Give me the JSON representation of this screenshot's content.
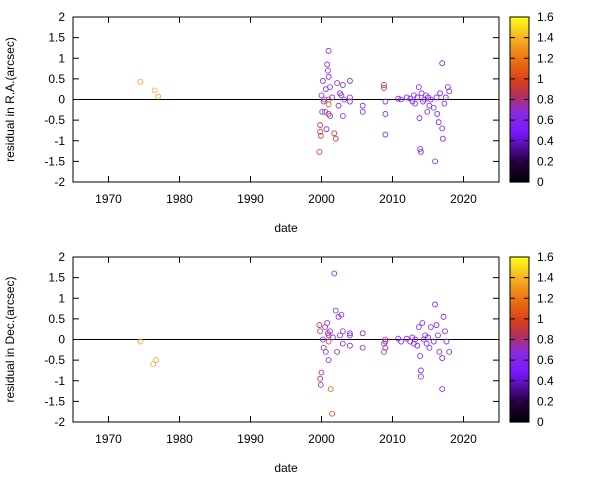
{
  "chart_data": [
    {
      "type": "scatter",
      "title": "",
      "xlabel": "date",
      "ylabel": "residual in R.A.(arcsec)",
      "xlim": [
        1965,
        2025
      ],
      "ylim": [
        -2,
        2
      ],
      "xticks": [
        1970,
        1980,
        1990,
        2000,
        2010,
        2020
      ],
      "yticks": [
        -2,
        -1.5,
        -1,
        -0.5,
        0,
        0.5,
        1,
        1.5,
        2
      ],
      "reference_line_y": 0,
      "marker": "open-circle",
      "colorbar": {
        "range": [
          0,
          1.6
        ],
        "ticks": [
          0,
          0.2,
          0.4,
          0.6,
          0.8,
          1,
          1.2,
          1.4,
          1.6
        ],
        "palette": "black-purple-red-orange-yellow"
      },
      "grid": false,
      "points": [
        {
          "x": 1974.5,
          "y": 0.43,
          "c": 1.35
        },
        {
          "x": 1976.5,
          "y": 0.22,
          "c": 1.4
        },
        {
          "x": 1977.0,
          "y": 0.07,
          "c": 1.35
        },
        {
          "x": 1999.7,
          "y": -1.27,
          "c": 0.95
        },
        {
          "x": 1999.8,
          "y": -0.78,
          "c": 0.95
        },
        {
          "x": 1999.8,
          "y": -0.62,
          "c": 0.9
        },
        {
          "x": 1999.9,
          "y": -0.88,
          "c": 0.9
        },
        {
          "x": 2000.0,
          "y": 0.1,
          "c": 0.65
        },
        {
          "x": 2000.1,
          "y": -0.3,
          "c": 0.65
        },
        {
          "x": 2000.2,
          "y": 0.45,
          "c": 0.6
        },
        {
          "x": 2000.3,
          "y": -0.05,
          "c": 0.7
        },
        {
          "x": 2000.4,
          "y": 0.0,
          "c": 0.65
        },
        {
          "x": 2000.5,
          "y": -0.3,
          "c": 0.65
        },
        {
          "x": 2000.6,
          "y": 0.25,
          "c": 0.6
        },
        {
          "x": 2000.7,
          "y": -0.72,
          "c": 0.6
        },
        {
          "x": 2000.8,
          "y": 0.85,
          "c": 0.6
        },
        {
          "x": 2000.9,
          "y": 0.7,
          "c": 0.65
        },
        {
          "x": 2001.0,
          "y": 1.18,
          "c": 0.6
        },
        {
          "x": 2001.0,
          "y": 0.55,
          "c": 0.6
        },
        {
          "x": 2001.0,
          "y": 0.0,
          "c": 1.0
        },
        {
          "x": 2001.0,
          "y": -0.12,
          "c": 1.1
        },
        {
          "x": 2001.0,
          "y": -0.35,
          "c": 0.9
        },
        {
          "x": 2001.2,
          "y": 0.3,
          "c": 0.65
        },
        {
          "x": 2001.2,
          "y": -0.4,
          "c": 0.65
        },
        {
          "x": 2001.5,
          "y": 0.05,
          "c": 0.6
        },
        {
          "x": 2001.8,
          "y": -0.82,
          "c": 0.9
        },
        {
          "x": 2002.0,
          "y": -0.95,
          "c": 0.9
        },
        {
          "x": 2002.2,
          "y": 0.4,
          "c": 0.6
        },
        {
          "x": 2002.4,
          "y": -0.15,
          "c": 0.6
        },
        {
          "x": 2002.6,
          "y": 0.15,
          "c": 0.6
        },
        {
          "x": 2002.8,
          "y": 0.1,
          "c": 0.6
        },
        {
          "x": 2003.0,
          "y": 0.35,
          "c": 0.65
        },
        {
          "x": 2003.0,
          "y": -0.4,
          "c": 0.6
        },
        {
          "x": 2003.2,
          "y": 0.0,
          "c": 0.6
        },
        {
          "x": 2004.0,
          "y": 0.05,
          "c": 0.6
        },
        {
          "x": 2004.0,
          "y": 0.45,
          "c": 0.6
        },
        {
          "x": 2004.0,
          "y": -0.05,
          "c": 0.6
        },
        {
          "x": 2005.8,
          "y": -0.15,
          "c": 0.6
        },
        {
          "x": 2005.8,
          "y": -0.3,
          "c": 0.6
        },
        {
          "x": 2008.8,
          "y": 0.35,
          "c": 0.9
        },
        {
          "x": 2008.8,
          "y": 0.28,
          "c": 0.9
        },
        {
          "x": 2009.0,
          "y": -0.05,
          "c": 0.6
        },
        {
          "x": 2009.0,
          "y": -0.35,
          "c": 0.6
        },
        {
          "x": 2009.0,
          "y": -0.85,
          "c": 0.6
        },
        {
          "x": 2010.8,
          "y": 0.02,
          "c": 0.55
        },
        {
          "x": 2011.2,
          "y": 0.0,
          "c": 0.55
        },
        {
          "x": 2012.0,
          "y": 0.05,
          "c": 0.55
        },
        {
          "x": 2012.5,
          "y": 0.02,
          "c": 0.55
        },
        {
          "x": 2012.8,
          "y": -0.05,
          "c": 0.55
        },
        {
          "x": 2013.0,
          "y": 0.1,
          "c": 0.55
        },
        {
          "x": 2013.2,
          "y": -0.1,
          "c": 0.55
        },
        {
          "x": 2013.5,
          "y": 0.05,
          "c": 0.55
        },
        {
          "x": 2013.7,
          "y": 0.3,
          "c": 0.55
        },
        {
          "x": 2013.8,
          "y": -0.45,
          "c": 0.55
        },
        {
          "x": 2013.9,
          "y": -1.2,
          "c": 0.55
        },
        {
          "x": 2014.0,
          "y": -1.27,
          "c": 0.55
        },
        {
          "x": 2014.1,
          "y": 0.15,
          "c": 0.55
        },
        {
          "x": 2014.3,
          "y": -0.05,
          "c": 0.55
        },
        {
          "x": 2014.5,
          "y": 0.0,
          "c": 0.55
        },
        {
          "x": 2014.7,
          "y": 0.1,
          "c": 0.55
        },
        {
          "x": 2014.9,
          "y": -0.3,
          "c": 0.55
        },
        {
          "x": 2015.0,
          "y": 0.05,
          "c": 0.55
        },
        {
          "x": 2015.2,
          "y": -0.15,
          "c": 0.55
        },
        {
          "x": 2015.4,
          "y": 0.0,
          "c": 0.55
        },
        {
          "x": 2015.8,
          "y": -0.2,
          "c": 0.55
        },
        {
          "x": 2016.0,
          "y": -1.5,
          "c": 0.55
        },
        {
          "x": 2016.2,
          "y": 0.05,
          "c": 0.55
        },
        {
          "x": 2016.3,
          "y": -0.35,
          "c": 0.55
        },
        {
          "x": 2016.5,
          "y": -0.55,
          "c": 0.55
        },
        {
          "x": 2016.7,
          "y": 0.15,
          "c": 0.55
        },
        {
          "x": 2017.0,
          "y": 0.88,
          "c": 0.55
        },
        {
          "x": 2017.0,
          "y": -0.7,
          "c": 0.55
        },
        {
          "x": 2017.1,
          "y": -0.95,
          "c": 0.55
        },
        {
          "x": 2017.3,
          "y": -0.1,
          "c": 0.55
        },
        {
          "x": 2017.5,
          "y": 0.05,
          "c": 0.55
        },
        {
          "x": 2017.8,
          "y": 0.3,
          "c": 0.55
        },
        {
          "x": 2018.0,
          "y": 0.2,
          "c": 0.55
        }
      ]
    },
    {
      "type": "scatter",
      "title": "",
      "xlabel": "date",
      "ylabel": "residual in Dec.(arcsec)",
      "xlim": [
        1965,
        2025
      ],
      "ylim": [
        -2,
        2
      ],
      "xticks": [
        1970,
        1980,
        1990,
        2000,
        2010,
        2020
      ],
      "yticks": [
        -2,
        -1.5,
        -1,
        -0.5,
        0,
        0.5,
        1,
        1.5,
        2
      ],
      "reference_line_y": 0,
      "marker": "open-circle",
      "colorbar": {
        "range": [
          0,
          1.6
        ],
        "ticks": [
          0,
          0.2,
          0.4,
          0.6,
          0.8,
          1,
          1.2,
          1.4,
          1.6
        ],
        "palette": "black-purple-red-orange-yellow"
      },
      "grid": false,
      "points": [
        {
          "x": 1974.5,
          "y": -0.05,
          "c": 1.35
        },
        {
          "x": 1976.3,
          "y": -0.6,
          "c": 1.35
        },
        {
          "x": 1976.7,
          "y": -0.5,
          "c": 1.35
        },
        {
          "x": 1999.7,
          "y": 0.35,
          "c": 0.9
        },
        {
          "x": 1999.8,
          "y": 0.2,
          "c": 0.9
        },
        {
          "x": 1999.8,
          "y": -0.95,
          "c": 0.95
        },
        {
          "x": 1999.9,
          "y": -1.1,
          "c": 0.6
        },
        {
          "x": 2000.0,
          "y": -0.8,
          "c": 0.6
        },
        {
          "x": 2000.2,
          "y": 0.0,
          "c": 0.65
        },
        {
          "x": 2000.3,
          "y": -0.2,
          "c": 0.65
        },
        {
          "x": 2000.5,
          "y": 0.3,
          "c": 0.65
        },
        {
          "x": 2000.6,
          "y": -0.3,
          "c": 0.65
        },
        {
          "x": 2000.8,
          "y": 0.4,
          "c": 0.65
        },
        {
          "x": 2000.9,
          "y": 0.15,
          "c": 0.9
        },
        {
          "x": 2001.0,
          "y": -0.05,
          "c": 1.0
        },
        {
          "x": 2001.0,
          "y": 0.1,
          "c": 0.6
        },
        {
          "x": 2001.0,
          "y": -0.5,
          "c": 0.6
        },
        {
          "x": 2001.2,
          "y": 0.2,
          "c": 0.6
        },
        {
          "x": 2001.3,
          "y": -1.2,
          "c": 1.1
        },
        {
          "x": 2001.5,
          "y": -1.8,
          "c": 1.0
        },
        {
          "x": 2001.6,
          "y": 0.05,
          "c": 0.6
        },
        {
          "x": 2001.8,
          "y": 1.6,
          "c": 0.6
        },
        {
          "x": 2002.0,
          "y": 0.7,
          "c": 0.6
        },
        {
          "x": 2002.2,
          "y": -0.3,
          "c": 0.6
        },
        {
          "x": 2002.4,
          "y": 0.55,
          "c": 0.6
        },
        {
          "x": 2002.6,
          "y": 0.1,
          "c": 0.6
        },
        {
          "x": 2002.8,
          "y": 0.6,
          "c": 0.6
        },
        {
          "x": 2003.0,
          "y": -0.1,
          "c": 0.6
        },
        {
          "x": 2003.0,
          "y": 0.2,
          "c": 0.6
        },
        {
          "x": 2004.0,
          "y": 0.15,
          "c": 0.6
        },
        {
          "x": 2004.0,
          "y": -0.15,
          "c": 0.6
        },
        {
          "x": 2004.0,
          "y": 0.1,
          "c": 0.6
        },
        {
          "x": 2005.8,
          "y": 0.15,
          "c": 0.6
        },
        {
          "x": 2005.8,
          "y": -0.2,
          "c": 0.6
        },
        {
          "x": 2008.8,
          "y": -0.1,
          "c": 0.9
        },
        {
          "x": 2008.8,
          "y": -0.3,
          "c": 0.9
        },
        {
          "x": 2009.0,
          "y": 0.0,
          "c": 0.9
        },
        {
          "x": 2009.0,
          "y": -0.05,
          "c": 0.6
        },
        {
          "x": 2009.0,
          "y": -0.2,
          "c": 0.6
        },
        {
          "x": 2010.8,
          "y": 0.02,
          "c": 0.55
        },
        {
          "x": 2011.2,
          "y": -0.05,
          "c": 0.55
        },
        {
          "x": 2012.0,
          "y": 0.02,
          "c": 0.55
        },
        {
          "x": 2012.5,
          "y": -0.05,
          "c": 0.55
        },
        {
          "x": 2012.8,
          "y": 0.05,
          "c": 0.55
        },
        {
          "x": 2013.0,
          "y": -0.1,
          "c": 0.55
        },
        {
          "x": 2013.2,
          "y": 0.0,
          "c": 0.55
        },
        {
          "x": 2013.5,
          "y": -0.15,
          "c": 0.55
        },
        {
          "x": 2013.7,
          "y": 0.3,
          "c": 0.55
        },
        {
          "x": 2013.9,
          "y": -0.4,
          "c": 0.55
        },
        {
          "x": 2014.0,
          "y": -0.9,
          "c": 0.55
        },
        {
          "x": 2014.0,
          "y": -0.75,
          "c": 0.55
        },
        {
          "x": 2014.2,
          "y": 0.4,
          "c": 0.55
        },
        {
          "x": 2014.4,
          "y": 0.0,
          "c": 0.55
        },
        {
          "x": 2014.6,
          "y": 0.1,
          "c": 0.55
        },
        {
          "x": 2014.8,
          "y": -0.1,
          "c": 0.55
        },
        {
          "x": 2015.0,
          "y": 0.05,
          "c": 0.55
        },
        {
          "x": 2015.2,
          "y": -0.2,
          "c": 0.55
        },
        {
          "x": 2015.4,
          "y": 0.3,
          "c": 0.55
        },
        {
          "x": 2015.8,
          "y": -0.05,
          "c": 0.55
        },
        {
          "x": 2016.0,
          "y": 0.85,
          "c": 0.55
        },
        {
          "x": 2016.2,
          "y": 0.35,
          "c": 0.55
        },
        {
          "x": 2016.4,
          "y": 0.1,
          "c": 0.55
        },
        {
          "x": 2016.6,
          "y": -0.3,
          "c": 0.55
        },
        {
          "x": 2017.0,
          "y": -1.2,
          "c": 0.55
        },
        {
          "x": 2017.0,
          "y": -0.45,
          "c": 0.55
        },
        {
          "x": 2017.2,
          "y": 0.55,
          "c": 0.55
        },
        {
          "x": 2017.4,
          "y": 0.2,
          "c": 0.55
        },
        {
          "x": 2017.6,
          "y": -0.05,
          "c": 0.55
        },
        {
          "x": 2018.0,
          "y": -0.3,
          "c": 0.55
        }
      ]
    }
  ]
}
